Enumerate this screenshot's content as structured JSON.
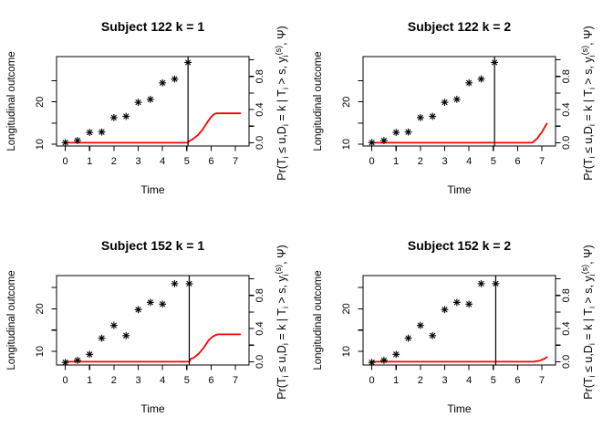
{
  "figure": {
    "background": "#ffffff",
    "axis_color": "#000000",
    "text_color": "#000000",
    "right_label_parts": [
      {
        "text": "Pr(T",
        "pos": "n"
      },
      {
        "text": "i",
        "pos": "sub"
      },
      {
        "text": " ≤ u,D",
        "pos": "n"
      },
      {
        "text": "i",
        "pos": "sub"
      },
      {
        "text": " = k | T",
        "pos": "n"
      },
      {
        "text": "i",
        "pos": "sub"
      },
      {
        "text": " > s, y",
        "pos": "n"
      },
      {
        "text": "i",
        "pos": "sub"
      },
      {
        "text": "(s)",
        "pos": "sup"
      },
      {
        "text": ", Ψ)",
        "pos": "n"
      }
    ]
  },
  "chart_data": [
    {
      "type": "scatter",
      "title": "Subject 122 k = 1",
      "xlabel": "Time",
      "ylabel_left": "Longitudinal outcome",
      "ylabel_right": "Pr(Ti ≤ u,Di = k | Ti > s, yi(s), Ψ)",
      "marker": "star-8",
      "point_color": "#000000",
      "line_color": "#ff0000",
      "xlim": [
        -0.36,
        7.56
      ],
      "ylim_left": [
        9.6,
        30.7
      ],
      "ylim_right": [
        0,
        1
      ],
      "x_ticks": [
        {
          "v": 0,
          "label": "0"
        },
        {
          "v": 1,
          "label": "1"
        },
        {
          "v": 2,
          "label": "2"
        },
        {
          "v": 3,
          "label": "3"
        },
        {
          "v": 4,
          "label": "4"
        },
        {
          "v": 5,
          "label": "5"
        },
        {
          "v": 6,
          "label": "6"
        },
        {
          "v": 7,
          "label": "7"
        }
      ],
      "y_ticks_left": [
        10,
        15,
        20,
        25
      ],
      "y_tick_labels_left": [
        {
          "v": 10,
          "label": "10"
        },
        {
          "v": 20,
          "label": "20"
        }
      ],
      "y_ticks_right": [
        0,
        0.2,
        0.4,
        0.6,
        0.8,
        1.0
      ],
      "y_tick_labels_right": [
        {
          "v": 0,
          "label": "0.0"
        },
        {
          "v": 0.4,
          "label": "0.4"
        },
        {
          "v": 0.8,
          "label": "0.8"
        }
      ],
      "points_t": [
        0,
        0.5,
        1,
        1.5,
        2,
        2.5,
        3,
        3.5,
        4,
        4.5,
        5.05
      ],
      "points_y": [
        10.4,
        10.9,
        12.8,
        12.9,
        16.3,
        16.6,
        19.9,
        20.6,
        24.5,
        25.4,
        29.3
      ],
      "vline_t": 5.05,
      "prob_t": [
        0,
        5.05,
        5.1,
        5.25,
        5.45,
        5.65,
        5.85,
        6.0,
        6.1,
        6.2,
        7.2
      ],
      "prob_p": [
        0,
        0,
        0.02,
        0.045,
        0.09,
        0.16,
        0.25,
        0.31,
        0.34,
        0.355,
        0.355
      ]
    },
    {
      "type": "scatter",
      "title": "Subject 122 k = 2",
      "xlabel": "Time",
      "ylabel_left": "Longitudinal outcome",
      "ylabel_right": "Pr(Ti ≤ u,Di = k | Ti > s, yi(s), Ψ)",
      "marker": "star-8",
      "point_color": "#000000",
      "line_color": "#ff0000",
      "xlim": [
        -0.36,
        7.56
      ],
      "ylim_left": [
        9.6,
        30.7
      ],
      "ylim_right": [
        0,
        1
      ],
      "x_ticks": [
        {
          "v": 0,
          "label": "0"
        },
        {
          "v": 1,
          "label": "1"
        },
        {
          "v": 2,
          "label": "2"
        },
        {
          "v": 3,
          "label": "3"
        },
        {
          "v": 4,
          "label": "4"
        },
        {
          "v": 5,
          "label": "5"
        },
        {
          "v": 6,
          "label": "6"
        },
        {
          "v": 7,
          "label": "7"
        }
      ],
      "y_ticks_left": [
        10,
        15,
        20,
        25
      ],
      "y_tick_labels_left": [
        {
          "v": 10,
          "label": "10"
        },
        {
          "v": 20,
          "label": "20"
        }
      ],
      "y_ticks_right": [
        0,
        0.2,
        0.4,
        0.6,
        0.8,
        1.0
      ],
      "y_tick_labels_right": [
        {
          "v": 0,
          "label": "0.0"
        },
        {
          "v": 0.4,
          "label": "0.4"
        },
        {
          "v": 0.8,
          "label": "0.8"
        }
      ],
      "points_t": [
        0,
        0.5,
        1,
        1.5,
        2,
        2.5,
        3,
        3.5,
        4,
        4.5,
        5.05
      ],
      "points_y": [
        10.4,
        10.9,
        12.8,
        12.9,
        16.3,
        16.6,
        19.9,
        20.6,
        24.5,
        25.4,
        29.3
      ],
      "vline_t": 5.05,
      "prob_t": [
        0,
        6.6,
        6.8,
        7.0,
        7.2
      ],
      "prob_p": [
        0,
        0,
        0.05,
        0.13,
        0.23
      ]
    },
    {
      "type": "scatter",
      "title": "Subject 152 k = 1",
      "xlabel": "Time",
      "ylabel_left": "Longitudinal outcome",
      "ylabel_right": "Pr(Ti ≤ u,Di = k | Ti > s, yi(s), Ψ)",
      "marker": "star-8",
      "point_color": "#000000",
      "line_color": "#ff0000",
      "xlim": [
        -0.36,
        7.56
      ],
      "ylim_left": [
        6.8,
        27.8
      ],
      "ylim_right": [
        0,
        1
      ],
      "x_ticks": [
        {
          "v": 0,
          "label": "0"
        },
        {
          "v": 1,
          "label": "1"
        },
        {
          "v": 2,
          "label": "2"
        },
        {
          "v": 3,
          "label": "3"
        },
        {
          "v": 4,
          "label": "4"
        },
        {
          "v": 5,
          "label": "5"
        },
        {
          "v": 6,
          "label": "6"
        },
        {
          "v": 7,
          "label": "7"
        }
      ],
      "y_ticks_left": [
        10,
        15,
        20,
        25
      ],
      "y_tick_labels_left": [
        {
          "v": 10,
          "label": "10"
        },
        {
          "v": 20,
          "label": "20"
        }
      ],
      "y_ticks_right": [
        0,
        0.2,
        0.4,
        0.6,
        0.8,
        1.0
      ],
      "y_tick_labels_right": [
        {
          "v": 0,
          "label": "0.0"
        },
        {
          "v": 0.4,
          "label": "0.4"
        },
        {
          "v": 0.8,
          "label": "0.8"
        }
      ],
      "points_t": [
        0,
        0.5,
        1,
        1.5,
        2,
        2.5,
        3,
        3.5,
        4,
        4.5,
        5.1
      ],
      "points_y": [
        7.4,
        7.9,
        9.3,
        13.1,
        16.1,
        13.7,
        19.8,
        21.5,
        21.1,
        25.9,
        25.9
      ],
      "vline_t": 5.1,
      "prob_t": [
        0,
        5.1,
        5.15,
        5.3,
        5.5,
        5.7,
        5.9,
        6.05,
        6.2,
        6.3,
        7.2
      ],
      "prob_p": [
        0,
        0,
        0.03,
        0.05,
        0.1,
        0.17,
        0.26,
        0.3,
        0.325,
        0.33,
        0.33
      ]
    },
    {
      "type": "scatter",
      "title": "Subject 152 k = 2",
      "xlabel": "Time",
      "ylabel_left": "Longitudinal outcome",
      "ylabel_right": "Pr(Ti ≤ u,Di = k | Ti > s, yi(s), Ψ)",
      "marker": "star-8",
      "point_color": "#000000",
      "line_color": "#ff0000",
      "xlim": [
        -0.36,
        7.56
      ],
      "ylim_left": [
        6.8,
        27.8
      ],
      "ylim_right": [
        0,
        1
      ],
      "x_ticks": [
        {
          "v": 0,
          "label": "0"
        },
        {
          "v": 1,
          "label": "1"
        },
        {
          "v": 2,
          "label": "2"
        },
        {
          "v": 3,
          "label": "3"
        },
        {
          "v": 4,
          "label": "4"
        },
        {
          "v": 5,
          "label": "5"
        },
        {
          "v": 6,
          "label": "6"
        },
        {
          "v": 7,
          "label": "7"
        }
      ],
      "y_ticks_left": [
        10,
        15,
        20,
        25
      ],
      "y_tick_labels_left": [
        {
          "v": 10,
          "label": "10"
        },
        {
          "v": 20,
          "label": "20"
        }
      ],
      "y_ticks_right": [
        0,
        0.2,
        0.4,
        0.6,
        0.8,
        1.0
      ],
      "y_tick_labels_right": [
        {
          "v": 0,
          "label": "0.0"
        },
        {
          "v": 0.4,
          "label": "0.4"
        },
        {
          "v": 0.8,
          "label": "0.8"
        }
      ],
      "points_t": [
        0,
        0.5,
        1,
        1.5,
        2,
        2.5,
        3,
        3.5,
        4,
        4.5,
        5.1
      ],
      "points_y": [
        7.4,
        7.9,
        9.3,
        13.1,
        16.1,
        13.7,
        19.8,
        21.5,
        21.1,
        25.9,
        25.9
      ],
      "vline_t": 5.1,
      "prob_t": [
        0,
        6.65,
        6.9,
        7.1,
        7.2
      ],
      "prob_p": [
        0,
        0,
        0.012,
        0.035,
        0.055
      ]
    }
  ]
}
